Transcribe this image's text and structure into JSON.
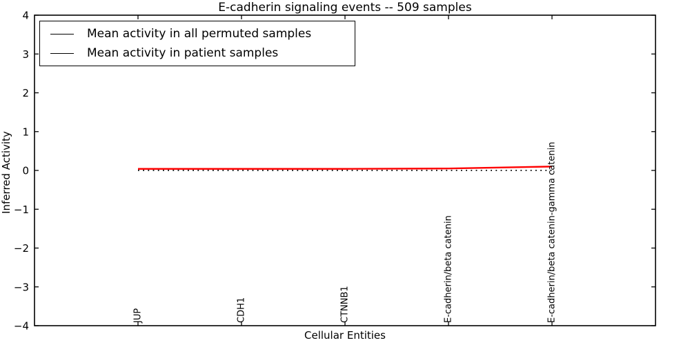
{
  "figure": {
    "background": "#ffffff",
    "frame_color": "#000000"
  },
  "chart_data": {
    "type": "line",
    "title": "E-cadherin signaling events -- 509 samples",
    "xlabel": "Cellular Entities",
    "ylabel": "Inferred Activity",
    "categories": [
      "JUP",
      "CDH1",
      "CTNNB1",
      "E-cadherin/beta catenin",
      "E-cadherin/beta catenin-gamma catenin"
    ],
    "x": [
      0,
      1,
      2,
      3,
      4
    ],
    "xlim": [
      -1,
      5
    ],
    "ylim": [
      -4,
      4
    ],
    "yticks": [
      -4,
      -3,
      -2,
      -1,
      0,
      1,
      2,
      3,
      4
    ],
    "ytick_labels": [
      "−4",
      "−3",
      "−2",
      "−1",
      "0",
      "1",
      "2",
      "3",
      "4"
    ],
    "grid": false,
    "legend_position": "upper-left",
    "series": [
      {
        "name": "Mean activity in all permuted samples",
        "color": "#000000",
        "style": "dotted",
        "values": [
          0.0,
          0.0,
          0.0,
          0.0,
          0.0
        ]
      },
      {
        "name": "Mean activity in patient samples",
        "color": "#ff0000",
        "style": "solid",
        "values": [
          0.04,
          0.04,
          0.04,
          0.05,
          0.1
        ]
      }
    ]
  }
}
